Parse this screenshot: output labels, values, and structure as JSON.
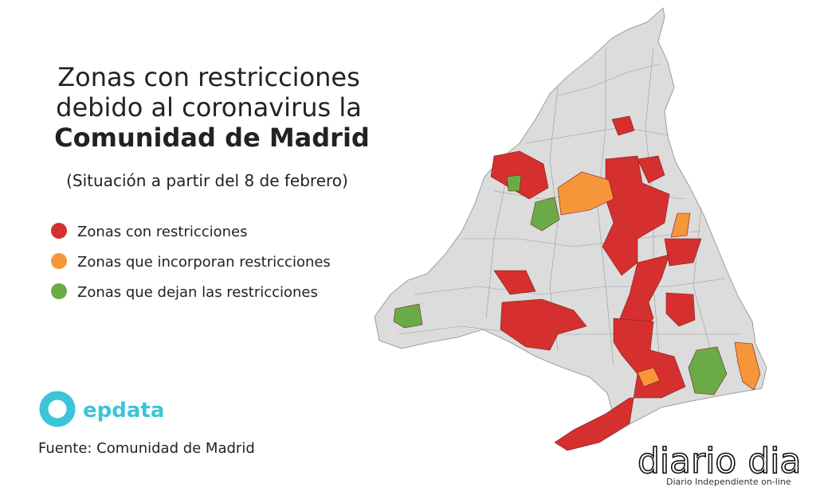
{
  "title_lines": [
    "Zonas con restricciones",
    "debido al coronavirus la",
    "Comunidad de Madrid"
  ],
  "subtitle": "(Situación a partir del 8 de febrero)",
  "legend": {
    "items": [
      {
        "label": "Zonas con restricciones",
        "color": "#d62f2f"
      },
      {
        "label": "Zonas que incorporan restricciones",
        "color": "#f7953b"
      },
      {
        "label": "Zonas que dejan las restricciones",
        "color": "#6aab48"
      }
    ]
  },
  "logo": "epdata",
  "source": "Fuente: Comunidad de Madrid",
  "watermark": {
    "name": "diario dia",
    "tagline": "Diario Independiente on-line"
  }
}
